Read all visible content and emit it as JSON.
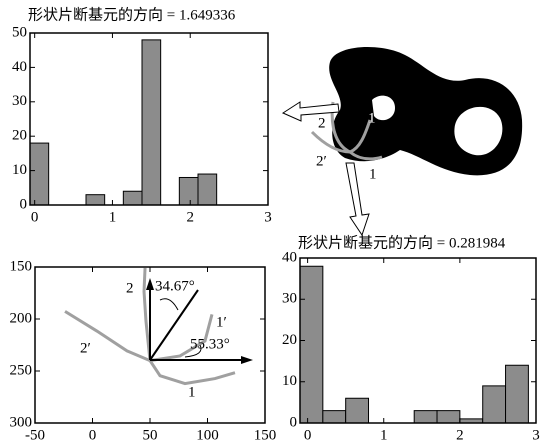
{
  "chart_data": [
    {
      "type": "histogram",
      "title": "形状片断基元的方向 = 1.649336",
      "bins": [
        -0.06,
        0.18,
        0.42,
        0.66,
        0.9,
        1.14,
        1.38,
        1.62,
        1.86,
        2.1,
        2.34
      ],
      "values": [
        18,
        0,
        0,
        3,
        0,
        4,
        48,
        0,
        8,
        9
      ],
      "color": "#8c8c8c",
      "xlim": [
        -0.06,
        3
      ],
      "xticks": [
        0,
        1,
        2,
        3
      ],
      "ylim": [
        0,
        50
      ],
      "yticks": [
        0,
        10,
        20,
        30,
        40,
        50
      ]
    },
    {
      "type": "line",
      "series": [
        {
          "name": "1",
          "color": "#a0a0a0",
          "x": [
            50,
            58.7,
            80.4,
            106.5,
            123.9
          ],
          "values": [
            240,
            254.5,
            262.1,
            257.3,
            251.6
          ]
        },
        {
          "name": "2",
          "color": "#a0a0a0",
          "x": [
            45.7,
            44.8,
            46.5,
            50
          ],
          "values": [
            150.9,
            173.7,
            202,
            240
          ]
        },
        {
          "name": "1′",
          "color": "#a0a0a0",
          "x": [
            103.9,
            97.8,
            76.1,
            50
          ],
          "values": [
            195.6,
            221.2,
            235.5,
            240
          ]
        },
        {
          "name": "2′",
          "color": "#a0a0a0",
          "x": [
            -23.9,
            4,
            30,
            50
          ],
          "values": [
            192.7,
            211.7,
            230.7,
            240
          ]
        }
      ],
      "annotations": [
        "34.67°",
        "55.33°"
      ],
      "xlim": [
        -50,
        150
      ],
      "xticks": [
        -50,
        0,
        50,
        100,
        150
      ],
      "ylim": [
        300,
        150
      ],
      "yticks": [
        150,
        200,
        250,
        300
      ]
    },
    {
      "type": "histogram",
      "title": "形状片断基元的方向 = 0.281984",
      "bins": [
        -0.1,
        0.2,
        0.5,
        0.8,
        1.1,
        1.4,
        1.7,
        2.0,
        2.3,
        2.6,
        2.9
      ],
      "values": [
        38,
        3,
        6,
        0,
        0,
        3,
        3,
        1,
        9,
        14
      ],
      "color": "#8c8c8c",
      "xlim": [
        -0.1,
        3
      ],
      "xticks": [
        0,
        1,
        2,
        3
      ],
      "ylim": [
        0,
        40
      ],
      "yticks": [
        0,
        10,
        20,
        30,
        40
      ]
    }
  ],
  "figure_labels": [
    "2",
    "1′",
    "2′",
    "1"
  ]
}
